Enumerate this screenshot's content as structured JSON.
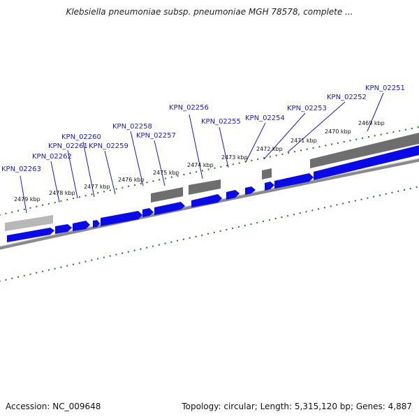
{
  "header": {
    "title": "Klebsiella pneumoniae subsp. pneumoniae MGH 78578, complete ..."
  },
  "footer": {
    "accession": "Accession: NC_009648",
    "summary": "Topology: circular; Length: 5,315,120 bp; Genes: 4,887"
  },
  "genes": [
    "KPN_02263",
    "KPN_02262",
    "KPN_02261",
    "KPN_02260",
    "KPN_02259",
    "KPN_02258",
    "KPN_02257",
    "KPN_02256",
    "KPN_02255",
    "KPN_02254",
    "KPN_02253",
    "KPN_02252",
    "KPN_02251"
  ],
  "kbp_ticks": [
    "2479 kbp",
    "2478 kbp",
    "2477 kbp",
    "2476 kbp",
    "2475 kbp",
    "2474 kbp",
    "2473 kbp",
    "2472 kbp",
    "2471 kbp",
    "2470 kbp",
    "2469 kbp"
  ],
  "colors": {
    "gene": "#0a0ae6",
    "gene_label": "#1a1acc",
    "feature_dark": "#6e6e6e",
    "feature_light": "#b8b8b8",
    "ruler_tick": "#1e7a1e",
    "backbone": "#888888"
  }
}
